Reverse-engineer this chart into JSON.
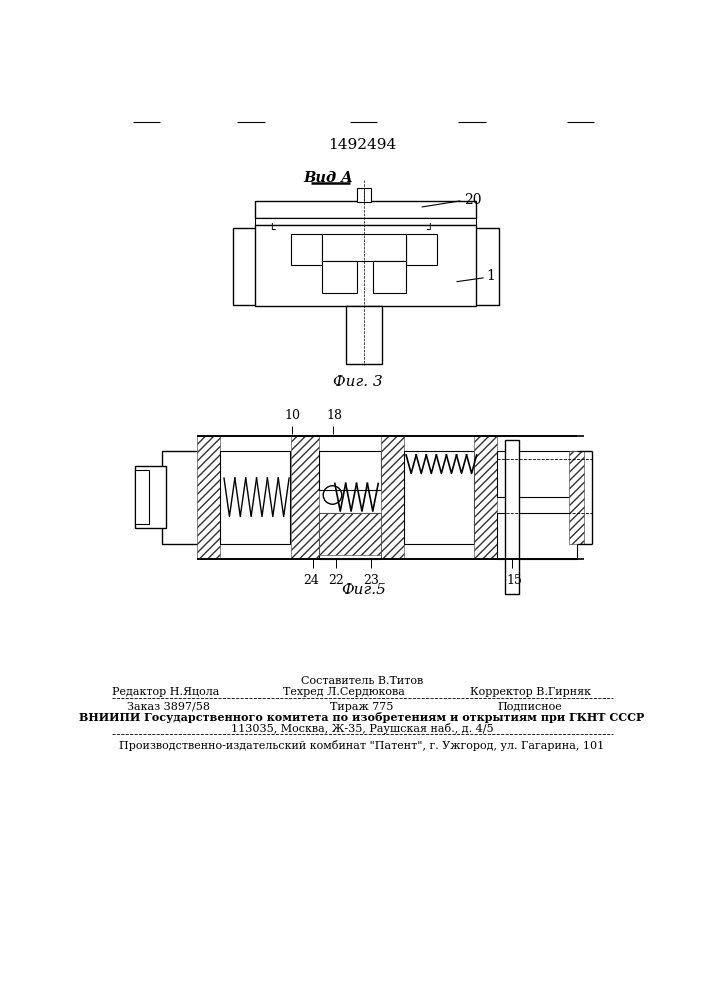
{
  "patent_number": "1492494",
  "fig3_label": "Фиг. 3",
  "fig5_label": "Фиг.5",
  "vid_a_label": "Вид A",
  "footer_line1_left": "Редактор Н.Яцола",
  "footer_line1_center": "Составитель В.Титов",
  "footer_line1_right": "Корректор В.Гирняк",
  "footer_tehred": "Техред Л.Сердюкова",
  "footer_line2_left": "Заказ 3897/58",
  "footer_line2_center": "Тираж 775",
  "footer_line2_right": "Подписное",
  "footer_vnipi": "ВНИИПИ Государственного комитета по изобретениям и открытиям при ГКНТ СССР",
  "footer_address": "113035, Москва, Ж-35, Раушская наб., д. 4/5",
  "footer_patent": "Производственно-издательский комбинат \"Патент\", г. Ужгород, ул. Гагарина, 101",
  "bg_color": "#ffffff",
  "text_color": "#000000"
}
